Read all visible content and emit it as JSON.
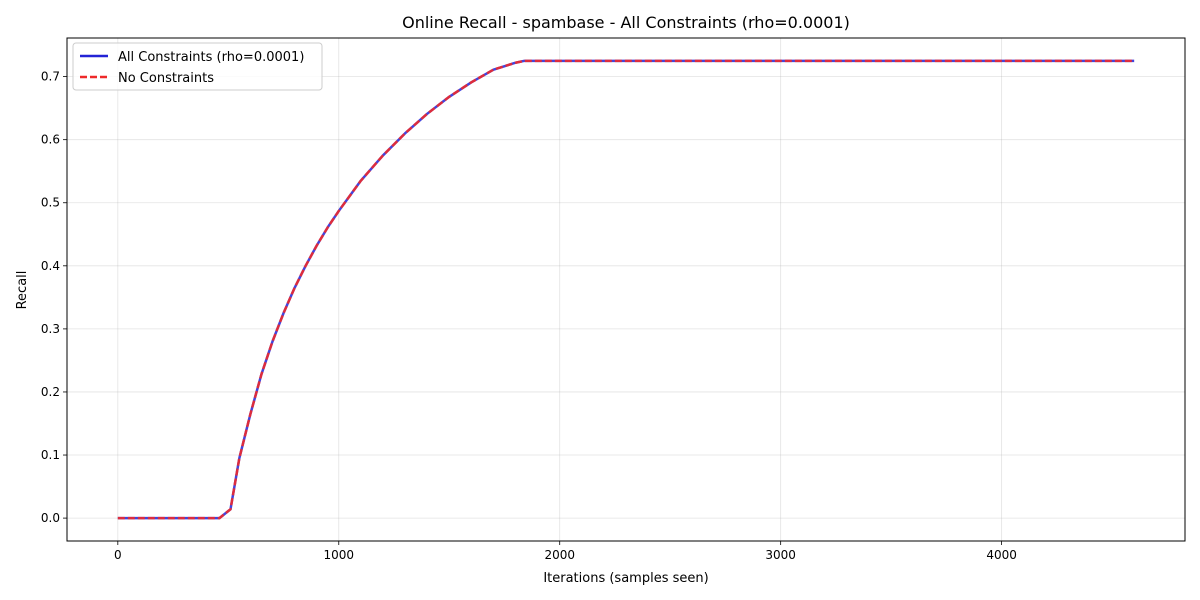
{
  "chart_data": {
    "type": "line",
    "title": "Online Recall - spambase - All Constraints (rho=0.0001)",
    "xlabel": "Iterations (samples seen)",
    "ylabel": "Recall",
    "xlim": [
      -230,
      4830
    ],
    "ylim": [
      -0.0363,
      0.7612
    ],
    "xticks": [
      0,
      1000,
      2000,
      3000,
      4000
    ],
    "yticks": [
      0.0,
      0.1,
      0.2,
      0.3,
      0.4,
      0.5,
      0.6,
      0.7
    ],
    "xtick_labels": [
      "0",
      "1000",
      "2000",
      "3000",
      "4000"
    ],
    "ytick_labels": [
      "0.0",
      "0.1",
      "0.2",
      "0.3",
      "0.4",
      "0.5",
      "0.6",
      "0.7"
    ],
    "grid": true,
    "legend_position": "top-left",
    "series": [
      {
        "name": "All Constraints (rho=0.0001)",
        "color": "#2323d6",
        "style": "solid",
        "x": [
          0,
          100,
          200,
          300,
          400,
          460,
          510,
          550,
          600,
          650,
          700,
          750,
          800,
          850,
          900,
          950,
          1000,
          1100,
          1200,
          1300,
          1400,
          1500,
          1600,
          1700,
          1800,
          1840,
          2000,
          3000,
          4000,
          4600
        ],
        "y": [
          0.0,
          0.0,
          0.0,
          0.0,
          0.0,
          0.0,
          0.014,
          0.095,
          0.165,
          0.228,
          0.28,
          0.325,
          0.365,
          0.4,
          0.432,
          0.461,
          0.487,
          0.535,
          0.575,
          0.61,
          0.641,
          0.668,
          0.691,
          0.711,
          0.722,
          0.725,
          0.725,
          0.725,
          0.725,
          0.725
        ]
      },
      {
        "name": "No Constraints",
        "color": "#ee2a2a",
        "style": "dashed",
        "x": [
          0,
          100,
          200,
          300,
          400,
          460,
          510,
          550,
          600,
          650,
          700,
          750,
          800,
          850,
          900,
          950,
          1000,
          1100,
          1200,
          1300,
          1400,
          1500,
          1600,
          1700,
          1800,
          1840,
          2000,
          3000,
          4000,
          4600
        ],
        "y": [
          0.0,
          0.0,
          0.0,
          0.0,
          0.0,
          0.0,
          0.014,
          0.095,
          0.165,
          0.228,
          0.28,
          0.325,
          0.365,
          0.4,
          0.432,
          0.461,
          0.487,
          0.535,
          0.575,
          0.61,
          0.641,
          0.668,
          0.691,
          0.711,
          0.722,
          0.725,
          0.725,
          0.725,
          0.725,
          0.725
        ]
      }
    ]
  }
}
